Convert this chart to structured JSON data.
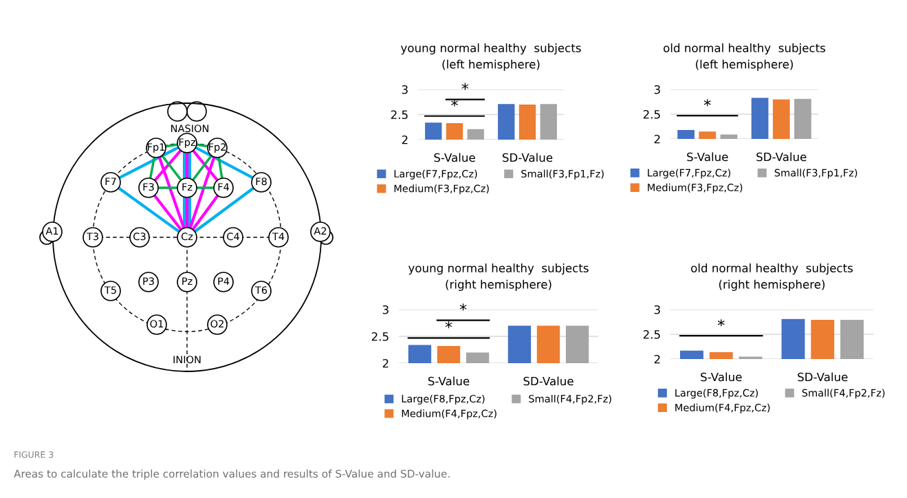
{
  "chart_data": [
    {
      "type": "other",
      "annotations": [
        "NASION",
        "INION",
        "Fpz",
        "Fp1",
        "Fp2",
        "F7",
        "F3",
        "Fz",
        "F4",
        "F8",
        "A1",
        "T3",
        "C3",
        "Cz",
        "C4",
        "T4",
        "A2",
        "T5",
        "P3",
        "Pz",
        "P4",
        "T6",
        "O1",
        "O2",
        "FIGURE 3",
        "Areas to calculate the triple correlation values and results of S-Value and SD-value."
      ]
    },
    {
      "type": "bar",
      "title": "young normal healthy  subjects\n(left hemisphere)",
      "categories": [
        "S-Value",
        "SD-Value"
      ],
      "series": [
        {
          "name": "Large(F7,Fpz,Cz)",
          "color": "#4472c4",
          "values": [
            2.34,
            2.71
          ]
        },
        {
          "name": "Medium(F3,Fpz,Cz)",
          "color": "#ed7d31",
          "values": [
            2.33,
            2.7
          ]
        },
        {
          "name": "Small(F3,Fp1,Fz)",
          "color": "#a5a5a5",
          "values": [
            2.21,
            2.71
          ]
        }
      ],
      "ylim": [
        2,
        3
      ],
      "yticks": [
        2,
        2.5,
        3
      ],
      "grid": "y",
      "legend": "bottom",
      "annotations": [
        "*",
        "*"
      ]
    },
    {
      "type": "bar",
      "title": "old normal healthy  subjects\n(left hemisphere)",
      "categories": [
        "S-Value",
        "SD-Value"
      ],
      "series": [
        {
          "name": "Large(F7,Fpz,Cz)",
          "color": "#4472c4",
          "values": [
            2.18,
            2.83
          ]
        },
        {
          "name": "Medium(F3,Fpz,Cz)",
          "color": "#ed7d31",
          "values": [
            2.15,
            2.8
          ]
        },
        {
          "name": "Small(F3,Fp1,Fz)",
          "color": "#a5a5a5",
          "values": [
            2.09,
            2.81
          ]
        }
      ],
      "ylim": [
        2,
        3
      ],
      "yticks": [
        2,
        2.5,
        3
      ],
      "grid": "y",
      "legend": "bottom",
      "annotations": [
        "*"
      ]
    },
    {
      "type": "bar",
      "title": "young normal healthy  subjects\n(right hemisphere)",
      "categories": [
        "S-Value",
        "SD-Value"
      ],
      "series": [
        {
          "name": "Large(F8,Fpz,Cz)",
          "color": "#4472c4",
          "values": [
            2.34,
            2.7
          ]
        },
        {
          "name": "Medium(F4,Fpz,Cz)",
          "color": "#ed7d31",
          "values": [
            2.32,
            2.7
          ]
        },
        {
          "name": "Small(F4,Fp2,Fz)",
          "color": "#a5a5a5",
          "values": [
            2.2,
            2.7
          ]
        }
      ],
      "ylim": [
        2,
        3
      ],
      "yticks": [
        2,
        2.5,
        3
      ],
      "grid": "y",
      "legend": "bottom",
      "annotations": [
        "*",
        "*"
      ]
    },
    {
      "type": "bar",
      "title": "old normal healthy  subjects\n(right hemisphere)",
      "categories": [
        "S-Value",
        "SD-Value"
      ],
      "series": [
        {
          "name": "Large(F8,Fpz,Cz)",
          "color": "#4472c4",
          "values": [
            2.17,
            2.81
          ]
        },
        {
          "name": "Medium(F4,Fpz,Cz)",
          "color": "#ed7d31",
          "values": [
            2.14,
            2.79
          ]
        },
        {
          "name": "Small(F4,Fp2,Fz)",
          "color": "#a5a5a5",
          "values": [
            2.05,
            2.79
          ]
        }
      ],
      "ylim": [
        2,
        3
      ],
      "yticks": [
        2,
        2.5,
        3
      ],
      "grid": "y",
      "legend": "bottom",
      "annotations": [
        "*"
      ]
    }
  ]
}
